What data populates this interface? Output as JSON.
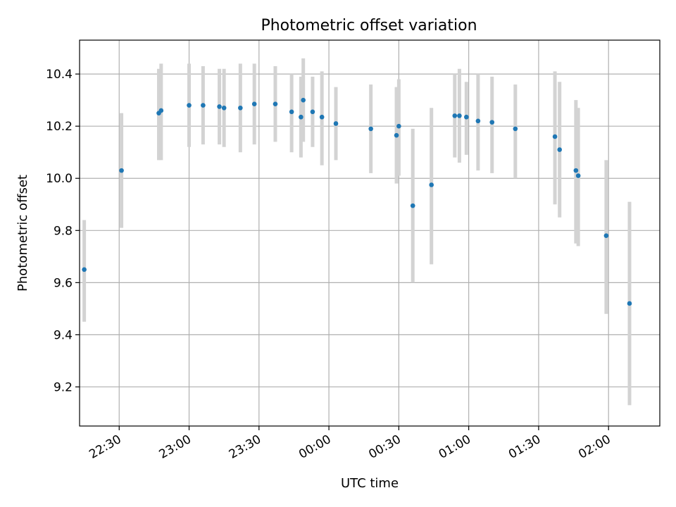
{
  "chart_data": {
    "type": "scatter",
    "title": "Photometric offset variation",
    "xlabel": "UTC time",
    "ylabel": "Photometric offset",
    "xlim": [
      "22:13",
      "02:22"
    ],
    "ylim": [
      9.05,
      10.53
    ],
    "x_ticks": [
      "22:30",
      "23:00",
      "23:30",
      "00:00",
      "00:30",
      "01:00",
      "01:30",
      "02:00"
    ],
    "y_ticks": [
      "9.2",
      "9.4",
      "9.6",
      "9.8",
      "10.0",
      "10.2",
      "10.4"
    ],
    "grid": true,
    "colors": {
      "marker": "#1f77b4",
      "errorbar": "#d3d3d3",
      "grid": "#b0b0b0"
    },
    "series": [
      {
        "x": [
          "22:15",
          "22:31",
          "22:47",
          "22:48",
          "23:00",
          "23:06",
          "23:13",
          "23:15",
          "23:22",
          "23:28",
          "23:37",
          "23:44",
          "23:48",
          "23:49",
          "23:53",
          "23:57",
          "00:03",
          "00:18",
          "00:29",
          "00:30",
          "00:36",
          "00:44",
          "00:54",
          "00:56",
          "00:59",
          "01:04",
          "01:10",
          "01:20",
          "01:37",
          "01:39",
          "01:46",
          "01:47",
          "01:59",
          "02:09"
        ],
        "y": [
          9.65,
          10.03,
          10.25,
          10.26,
          10.28,
          10.28,
          10.275,
          10.27,
          10.27,
          10.285,
          10.285,
          10.255,
          10.235,
          10.3,
          10.255,
          10.235,
          10.21,
          10.19,
          10.165,
          10.2,
          9.895,
          9.975,
          10.24,
          10.24,
          10.235,
          10.22,
          10.215,
          10.19,
          10.16,
          10.11,
          10.03,
          10.01,
          9.78,
          9.52
        ],
        "yerr_low": [
          9.45,
          9.81,
          10.07,
          10.07,
          10.12,
          10.13,
          10.13,
          10.12,
          10.1,
          10.13,
          10.14,
          10.1,
          10.08,
          10.14,
          10.12,
          10.05,
          10.07,
          10.02,
          9.98,
          10.01,
          9.6,
          9.67,
          10.08,
          10.06,
          10.09,
          10.03,
          10.02,
          10.0,
          9.9,
          9.85,
          9.75,
          9.74,
          9.48,
          9.13
        ],
        "yerr_high": [
          9.84,
          10.25,
          10.42,
          10.44,
          10.44,
          10.43,
          10.42,
          10.42,
          10.44,
          10.44,
          10.43,
          10.4,
          10.39,
          10.46,
          10.39,
          10.41,
          10.35,
          10.36,
          10.35,
          10.38,
          10.19,
          10.27,
          10.4,
          10.42,
          10.37,
          10.4,
          10.39,
          10.36,
          10.41,
          10.37,
          10.3,
          10.27,
          10.07,
          9.91
        ]
      }
    ]
  }
}
